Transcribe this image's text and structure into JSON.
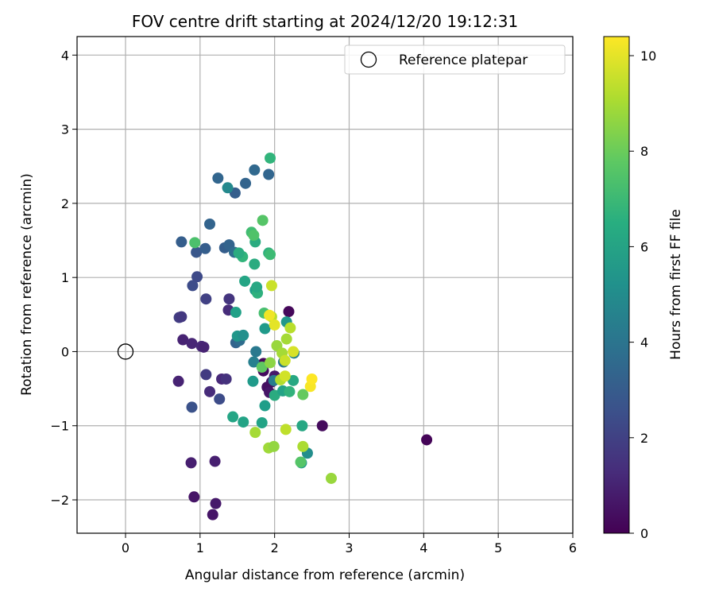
{
  "chart_data": {
    "type": "scatter",
    "title": "FOV centre drift starting at 2024/12/20 19:12:31",
    "xlabel": "Angular distance from reference (arcmin)",
    "ylabel": "Rotation from reference (arcmin)",
    "xlim": [
      -0.65,
      6
    ],
    "ylim": [
      -2.45,
      4.25
    ],
    "xticks": [
      "0",
      "1",
      "2",
      "3",
      "4",
      "5",
      "6"
    ],
    "yticks": [
      "−2",
      "−1",
      "0",
      "1",
      "2",
      "3",
      "4"
    ],
    "grid": true,
    "legend": {
      "placement": "top-right",
      "entries": [
        "Reference platepar"
      ]
    },
    "reference_point": {
      "x": 0,
      "y": 0,
      "label": "Reference platepar"
    },
    "colorbar": {
      "label": "Hours from first FF file",
      "range": [
        0,
        10.4
      ],
      "ticks": [
        "0",
        "2",
        "4",
        "6",
        "8",
        "10"
      ],
      "colormap": "viridis"
    },
    "points": [
      {
        "x": 4.04,
        "y": -1.19,
        "c": 0.1
      },
      {
        "x": 2.64,
        "y": -1.0,
        "c": 0.3
      },
      {
        "x": 2.19,
        "y": 0.54,
        "c": 0.2
      },
      {
        "x": 1.85,
        "y": -0.16,
        "c": 0.2
      },
      {
        "x": 1.85,
        "y": -0.26,
        "c": 0.3
      },
      {
        "x": 1.9,
        "y": -0.48,
        "c": 0.4
      },
      {
        "x": 1.93,
        "y": -0.55,
        "c": 0.6
      },
      {
        "x": 1.96,
        "y": -0.41,
        "c": 0.4
      },
      {
        "x": 2.0,
        "y": -0.33,
        "c": 0.7
      },
      {
        "x": 1.17,
        "y": -2.2,
        "c": 0.6
      },
      {
        "x": 1.21,
        "y": -2.05,
        "c": 0.7
      },
      {
        "x": 0.92,
        "y": -1.96,
        "c": 0.6
      },
      {
        "x": 0.88,
        "y": -1.5,
        "c": 0.9
      },
      {
        "x": 1.2,
        "y": -1.48,
        "c": 0.9
      },
      {
        "x": 0.71,
        "y": -0.4,
        "c": 1.0
      },
      {
        "x": 1.13,
        "y": -0.54,
        "c": 1.3
      },
      {
        "x": 1.29,
        "y": -0.37,
        "c": 1.2
      },
      {
        "x": 1.35,
        "y": -0.37,
        "c": 1.5
      },
      {
        "x": 1.08,
        "y": -0.31,
        "c": 1.8
      },
      {
        "x": 1.26,
        "y": -0.64,
        "c": 2.4
      },
      {
        "x": 0.89,
        "y": -0.75,
        "c": 2.6
      },
      {
        "x": 0.77,
        "y": 0.16,
        "c": 1.0
      },
      {
        "x": 0.89,
        "y": 0.11,
        "c": 1.1
      },
      {
        "x": 1.02,
        "y": 0.07,
        "c": 1.2
      },
      {
        "x": 1.05,
        "y": 0.06,
        "c": 1.0
      },
      {
        "x": 1.53,
        "y": 0.17,
        "c": 1.5
      },
      {
        "x": 0.72,
        "y": 0.46,
        "c": 1.9
      },
      {
        "x": 0.75,
        "y": 0.47,
        "c": 1.7
      },
      {
        "x": 1.38,
        "y": 0.56,
        "c": 1.3
      },
      {
        "x": 1.39,
        "y": 0.71,
        "c": 1.6
      },
      {
        "x": 1.08,
        "y": 0.71,
        "c": 2.0
      },
      {
        "x": 0.9,
        "y": 0.89,
        "c": 2.4
      },
      {
        "x": 0.96,
        "y": 1.01,
        "c": 2.3
      },
      {
        "x": 0.95,
        "y": 1.34,
        "c": 2.8
      },
      {
        "x": 1.07,
        "y": 1.39,
        "c": 3.1
      },
      {
        "x": 0.75,
        "y": 1.48,
        "c": 3.1
      },
      {
        "x": 1.13,
        "y": 1.72,
        "c": 3.3
      },
      {
        "x": 1.33,
        "y": 1.4,
        "c": 3.1
      },
      {
        "x": 1.39,
        "y": 1.44,
        "c": 3.3
      },
      {
        "x": 1.46,
        "y": 1.34,
        "c": 3.7
      },
      {
        "x": 1.24,
        "y": 2.34,
        "c": 3.4
      },
      {
        "x": 1.47,
        "y": 2.14,
        "c": 3.1
      },
      {
        "x": 1.61,
        "y": 2.27,
        "c": 3.3
      },
      {
        "x": 1.73,
        "y": 2.45,
        "c": 3.5
      },
      {
        "x": 1.92,
        "y": 2.39,
        "c": 3.4
      },
      {
        "x": 1.37,
        "y": 2.21,
        "c": 4.9
      },
      {
        "x": 1.94,
        "y": 2.61,
        "c": 6.8
      },
      {
        "x": 1.48,
        "y": 0.12,
        "c": 3.3
      },
      {
        "x": 1.53,
        "y": 0.15,
        "c": 3.7
      },
      {
        "x": 1.75,
        "y": 0.0,
        "c": 4.2
      },
      {
        "x": 1.72,
        "y": -0.14,
        "c": 4.5
      },
      {
        "x": 2.12,
        "y": -0.14,
        "c": 4.2
      },
      {
        "x": 1.99,
        "y": -0.39,
        "c": 4.4
      },
      {
        "x": 2.26,
        "y": -0.02,
        "c": 4.6
      },
      {
        "x": 2.44,
        "y": -1.37,
        "c": 5.1
      },
      {
        "x": 2.36,
        "y": -1.5,
        "c": 5.6
      },
      {
        "x": 1.5,
        "y": 0.21,
        "c": 5.5
      },
      {
        "x": 1.58,
        "y": 0.22,
        "c": 5.2
      },
      {
        "x": 1.48,
        "y": 0.53,
        "c": 5.9
      },
      {
        "x": 1.87,
        "y": 0.31,
        "c": 5.6
      },
      {
        "x": 2.16,
        "y": 0.4,
        "c": 5.5
      },
      {
        "x": 1.74,
        "y": 0.83,
        "c": 5.8
      },
      {
        "x": 1.77,
        "y": 0.79,
        "c": 6.6
      },
      {
        "x": 1.76,
        "y": 0.87,
        "c": 6.2
      },
      {
        "x": 1.6,
        "y": 0.95,
        "c": 6.1
      },
      {
        "x": 1.73,
        "y": 1.18,
        "c": 6.4
      },
      {
        "x": 1.57,
        "y": 1.28,
        "c": 6.8
      },
      {
        "x": 1.52,
        "y": 1.33,
        "c": 6.4
      },
      {
        "x": 1.92,
        "y": 1.33,
        "c": 6.6
      },
      {
        "x": 1.94,
        "y": 1.31,
        "c": 7.1
      },
      {
        "x": 1.74,
        "y": 1.48,
        "c": 6.4
      },
      {
        "x": 1.69,
        "y": 1.61,
        "c": 7.2
      },
      {
        "x": 1.72,
        "y": 1.57,
        "c": 7.5
      },
      {
        "x": 1.84,
        "y": 1.77,
        "c": 7.6
      },
      {
        "x": 0.93,
        "y": 1.47,
        "c": 7.4
      },
      {
        "x": 1.44,
        "y": -0.88,
        "c": 6.1
      },
      {
        "x": 1.58,
        "y": -0.95,
        "c": 6.0
      },
      {
        "x": 1.83,
        "y": -0.96,
        "c": 6.0
      },
      {
        "x": 1.87,
        "y": -0.73,
        "c": 5.8
      },
      {
        "x": 1.71,
        "y": -0.4,
        "c": 5.6
      },
      {
        "x": 2.0,
        "y": -0.59,
        "c": 6.4
      },
      {
        "x": 2.11,
        "y": -0.53,
        "c": 6.0
      },
      {
        "x": 2.2,
        "y": -0.54,
        "c": 6.7
      },
      {
        "x": 2.25,
        "y": -0.39,
        "c": 6.2
      },
      {
        "x": 2.37,
        "y": -1.0,
        "c": 6.2
      },
      {
        "x": 2.35,
        "y": -1.49,
        "c": 7.6
      },
      {
        "x": 2.38,
        "y": -0.58,
        "c": 7.9
      },
      {
        "x": 1.86,
        "y": 0.52,
        "c": 7.3
      },
      {
        "x": 1.83,
        "y": -0.21,
        "c": 7.8
      },
      {
        "x": 1.74,
        "y": -1.09,
        "c": 9.0
      },
      {
        "x": 1.92,
        "y": -1.3,
        "c": 8.9
      },
      {
        "x": 1.99,
        "y": -1.28,
        "c": 8.7
      },
      {
        "x": 2.15,
        "y": -1.05,
        "c": 9.4
      },
      {
        "x": 2.38,
        "y": -1.28,
        "c": 9.1
      },
      {
        "x": 2.76,
        "y": -1.71,
        "c": 8.8
      },
      {
        "x": 1.94,
        "y": -0.15,
        "c": 8.6
      },
      {
        "x": 2.03,
        "y": 0.08,
        "c": 8.8
      },
      {
        "x": 2.1,
        "y": -0.02,
        "c": 9.0
      },
      {
        "x": 2.14,
        "y": -0.12,
        "c": 9.6
      },
      {
        "x": 2.08,
        "y": -0.38,
        "c": 9.2
      },
      {
        "x": 2.14,
        "y": -0.33,
        "c": 9.7
      },
      {
        "x": 2.16,
        "y": 0.17,
        "c": 9.0
      },
      {
        "x": 2.21,
        "y": 0.32,
        "c": 9.3
      },
      {
        "x": 2.25,
        "y": 0.0,
        "c": 9.8
      },
      {
        "x": 1.96,
        "y": 0.89,
        "c": 9.6
      },
      {
        "x": 1.96,
        "y": 0.47,
        "c": 9.3
      },
      {
        "x": 1.93,
        "y": 0.49,
        "c": 10.2
      },
      {
        "x": 2.0,
        "y": 0.36,
        "c": 10.0
      },
      {
        "x": 2.48,
        "y": -0.47,
        "c": 10.3
      },
      {
        "x": 2.5,
        "y": -0.37,
        "c": 10.4
      }
    ]
  }
}
